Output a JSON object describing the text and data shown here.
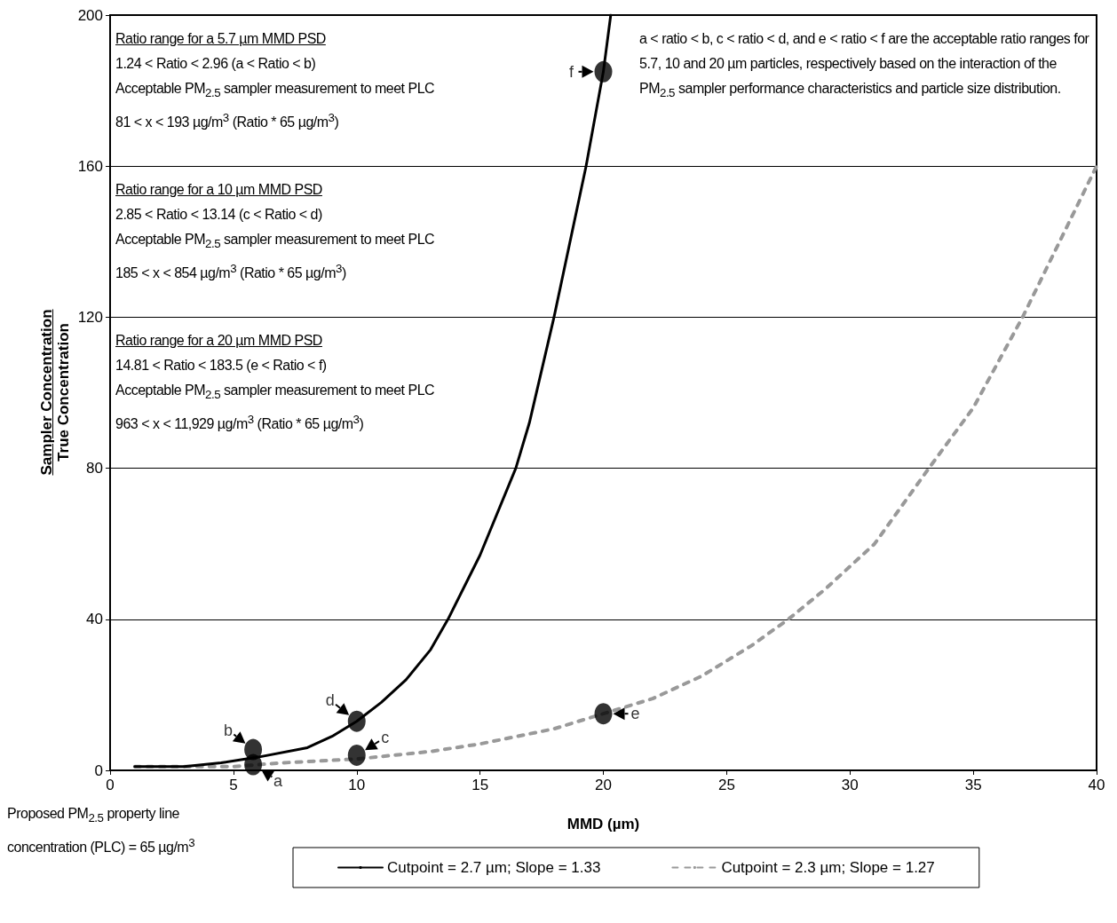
{
  "chart_data": {
    "type": "line",
    "xlabel": "MMD (µm)",
    "ylabel": "Sampler Concentration\nTrue Concentration",
    "xlim": [
      0,
      40
    ],
    "xticks": [
      0,
      5,
      10,
      15,
      20,
      25,
      30,
      35,
      40
    ],
    "ylim": [
      0,
      200
    ],
    "yticks": [
      0,
      40,
      80,
      120,
      160,
      200
    ],
    "grid": "y",
    "legend": "bottom",
    "marker": "none",
    "series": [
      {
        "name": "Cutpoint = 2.7 µm; Slope = 1.33",
        "color": "#000000",
        "line_style": "solid",
        "x": [
          1,
          3,
          4.5,
          6,
          8,
          9,
          10,
          11,
          12,
          13,
          13.7,
          15,
          16.45,
          17,
          18,
          19.3,
          20,
          20.3
        ],
        "values": [
          1,
          1,
          2,
          3.5,
          6,
          9,
          13,
          18,
          24,
          32,
          40,
          57,
          80,
          92,
          120,
          160,
          185,
          200
        ]
      },
      {
        "name": "Cutpoint = 2.3 µm; Slope = 1.27",
        "color": "#999999",
        "line_style": "dashed",
        "x": [
          1,
          5,
          7,
          10,
          13,
          15,
          18,
          20,
          22,
          24,
          26,
          27.5,
          29,
          31,
          33.2,
          35,
          37,
          38.5,
          40
        ],
        "values": [
          1,
          1,
          2,
          3,
          5,
          7,
          11,
          15,
          19,
          25,
          33,
          40,
          48,
          60,
          80,
          96,
          120,
          140,
          160
        ]
      },
      {
        "type": "scatter",
        "marker": "circle",
        "color": "#000000",
        "x": [
          5.8,
          5.8,
          10,
          10,
          20,
          20
        ],
        "values": [
          1.5,
          5.5,
          4,
          13,
          15,
          185
        ],
        "value_labels": [
          "a",
          "b",
          "c",
          "d",
          "e",
          "f"
        ]
      }
    ],
    "annotations": [
      "Ratio range for a 5.7 µm MMD PSD\n1.24 < Ratio < 2.96 (a < Ratio < b)\nAcceptable PM$_{2.5}$ sampler measurement to meet PLC\n81 < x < 193 µg/m$^{3}$ (Ratio * 65 µg/m$^{3}$)",
      "Ratio range for a 10 µm MMD PSD\n2.85 < Ratio < 13.14 (c < Ratio < d)\nAcceptable PM$_{2.5}$ sampler measurement to meet PLC\n185 < x < 854 µg/m$^{3}$ (Ratio * 65 µg/m$^{3}$)",
      "Ratio range for a 20 µm MMD PSD\n14.81 < Ratio < 183.5 (e < Ratio < f)\nAcceptable PM$_{2.5}$ sampler measurement to meet PLC\n963 < x < 11,929 µg/m$^{3}$ (Ratio * 65 µg/m$^{3}$)",
      "a < ratio < b, c < ratio < d, and e < ratio < f are the acceptable ratio ranges for 5.7, 10 and 20 µm particles, respectively based on the interaction of the PM$_{2.5}$ sampler performance characteristics and particle size distribution.",
      "Proposed PM$_{2.5}$ property line concentration (PLC) = 65 µg/m$^{3}$"
    ]
  }
}
